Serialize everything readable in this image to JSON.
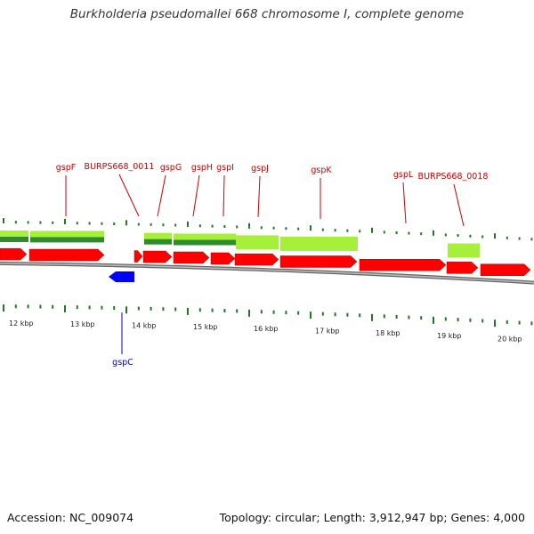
{
  "title": "Burkholderia pseudomallei 668 chromosome I, complete genome",
  "footer": {
    "accession": "Accession: NC_009074",
    "summary": "Topology: circular; Length: 3,912,947 bp; Genes: 4,000"
  },
  "colors": {
    "forward_gene": "#ff0000",
    "reverse_gene": "#0000ff",
    "label_forward": "#cc0000",
    "label_reverse": "#0000cc",
    "green_light": "#a6f03c",
    "green_dark": "#2e8b2e",
    "tick": "#1f7a1f",
    "backbone": "#888888"
  },
  "scale": {
    "unit": "kbp",
    "labels": [
      "12 kbp",
      "13 kbp",
      "14 kbp",
      "15 kbp",
      "16 kbp",
      "17 kbp",
      "18 kbp",
      "19 kbp",
      "20 kbp"
    ]
  },
  "genes": [
    {
      "name": "gspF",
      "strand": "forward"
    },
    {
      "name": "BURPS668_0011",
      "strand": "forward"
    },
    {
      "name": "gspG",
      "strand": "forward"
    },
    {
      "name": "gspH",
      "strand": "forward"
    },
    {
      "name": "gspI",
      "strand": "forward"
    },
    {
      "name": "gspJ",
      "strand": "forward"
    },
    {
      "name": "gspK",
      "strand": "forward"
    },
    {
      "name": "gspL",
      "strand": "forward"
    },
    {
      "name": "BURPS668_0018",
      "strand": "forward"
    },
    {
      "name": "gspC",
      "strand": "reverse"
    }
  ]
}
